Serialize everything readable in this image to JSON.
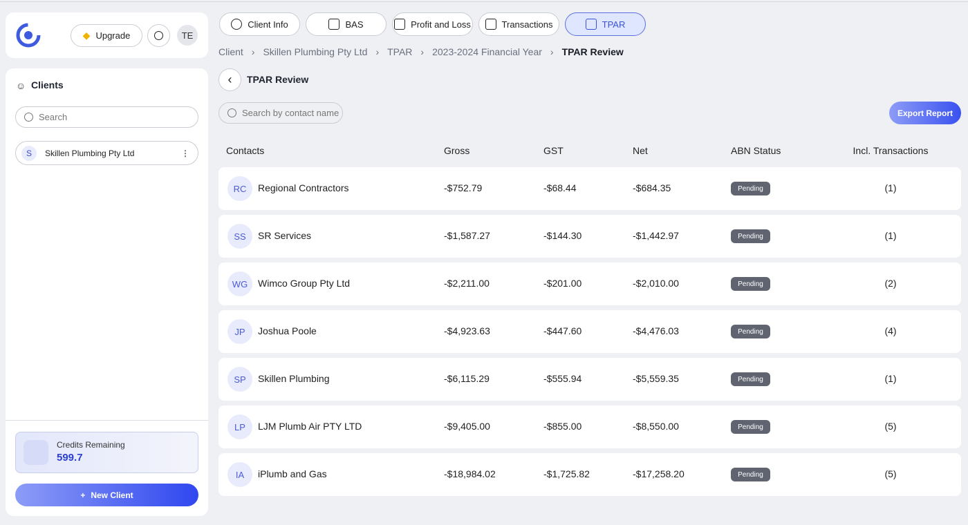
{
  "header": {
    "upgrade": "Upgrade",
    "avatar": "TE"
  },
  "sidebar": {
    "title": "Clients",
    "search_placeholder": "Search",
    "clients": [
      {
        "initial": "S",
        "name": "Skillen Plumbing Pty Ltd"
      }
    ],
    "credits_label": "Credits Remaining",
    "credits_value": "599.7",
    "new_client": "New Client"
  },
  "tabs": [
    "Client Info",
    "BAS",
    "Profit and Loss",
    "Transactions",
    "TPAR"
  ],
  "active_tab": 4,
  "breadcrumb": [
    "Client",
    "Skillen Plumbing Pty Ltd",
    "TPAR",
    "2023-2024 Financial Year",
    "TPAR Review"
  ],
  "page_title": "TPAR Review",
  "search_placeholder": "Search by contact name",
  "export_button": "Export Report",
  "table": {
    "columns": [
      "Contacts",
      "Gross",
      "GST",
      "Net",
      "ABN Status",
      "Incl. Transactions"
    ],
    "rows": [
      [
        "RC",
        "Regional Contractors",
        "-$752.79",
        "-$68.44",
        "-$684.35",
        "Pending",
        "(1)"
      ],
      [
        "SS",
        "SR Services",
        "-$1,587.27",
        "-$144.30",
        "-$1,442.97",
        "Pending",
        "(1)"
      ],
      [
        "WG",
        "Wimco Group Pty Ltd",
        "-$2,211.00",
        "-$201.00",
        "-$2,010.00",
        "Pending",
        "(2)"
      ],
      [
        "JP",
        "Joshua Poole",
        "-$4,923.63",
        "-$447.60",
        "-$4,476.03",
        "Pending",
        "(4)"
      ],
      [
        "SP",
        "Skillen Plumbing",
        "-$6,115.29",
        "-$555.94",
        "-$5,559.35",
        "Pending",
        "(1)"
      ],
      [
        "LP",
        "LJM Plumb Air PTY LTD",
        "-$9,405.00",
        "-$855.00",
        "-$8,550.00",
        "Pending",
        "(5)"
      ],
      [
        "IA",
        "iPlumb and Gas",
        "-$18,984.02",
        "-$1,725.82",
        "-$17,258.20",
        "Pending",
        "(5)"
      ]
    ]
  }
}
